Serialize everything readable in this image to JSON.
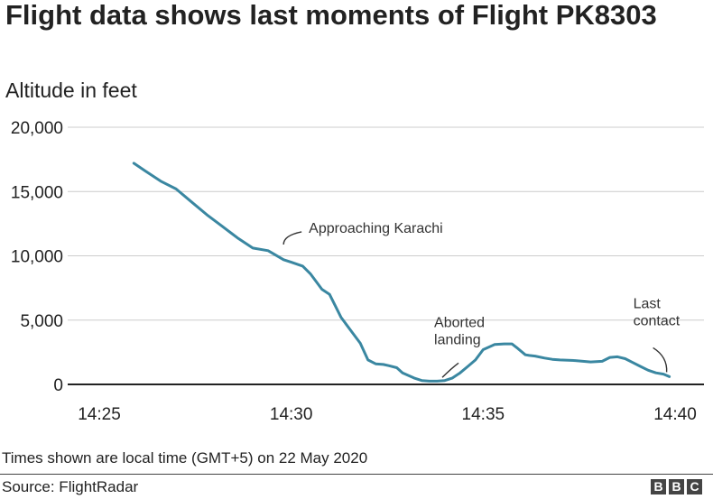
{
  "chart_data": {
    "type": "line",
    "title": "Flight data shows last moments of Flight PK8303",
    "ylabel": "Altitude in feet",
    "xlabel": "",
    "x_domain": [
      25,
      40
    ],
    "ylim": [
      0,
      20000
    ],
    "y_ticks": [
      0,
      5000,
      10000,
      15000,
      20000
    ],
    "y_tick_labels": [
      "0",
      "5,000",
      "10,000",
      "15,000",
      "20,000"
    ],
    "x_ticks": [
      25,
      30,
      35,
      40
    ],
    "x_tick_labels": [
      "14:25",
      "14:30",
      "14:35",
      "14:40"
    ],
    "grid": true,
    "line_color": "#3a87a1",
    "series": [
      {
        "name": "Altitude",
        "x": [
          25.9,
          26.2,
          26.6,
          27.0,
          27.4,
          27.8,
          28.2,
          28.6,
          29.0,
          29.4,
          29.8,
          30.0,
          30.3,
          30.5,
          30.8,
          31.0,
          31.3,
          31.6,
          31.8,
          32.0,
          32.2,
          32.4,
          32.55,
          32.75,
          32.9,
          33.2,
          33.4,
          33.6,
          33.8,
          34.0,
          34.2,
          34.4,
          34.6,
          34.8,
          35.0,
          35.3,
          35.55,
          35.75,
          35.9,
          36.1,
          36.2,
          36.35,
          36.6,
          36.8,
          37.0,
          37.4,
          37.8,
          38.1,
          38.3,
          38.5,
          38.7,
          38.9,
          39.1,
          39.3,
          39.5,
          39.7,
          39.85
        ],
        "y": [
          17200,
          16600,
          15800,
          15200,
          14200,
          13200,
          12300,
          11400,
          10600,
          10400,
          9700,
          9500,
          9200,
          8600,
          7400,
          7000,
          5200,
          4000,
          3200,
          1900,
          1600,
          1550,
          1450,
          1300,
          900,
          500,
          300,
          250,
          250,
          300,
          500,
          900,
          1400,
          1900,
          2700,
          3100,
          3150,
          3150,
          2800,
          2300,
          2250,
          2200,
          2050,
          1950,
          1900,
          1850,
          1750,
          1800,
          2100,
          2150,
          2000,
          1700,
          1400,
          1100,
          900,
          800,
          600
        ]
      }
    ],
    "annotations": [
      {
        "lines": [
          "Approaching Karachi"
        ],
        "x": 29.8,
        "y": 10600
      },
      {
        "lines": [
          "Aborted",
          "landing"
        ],
        "x": 33.7,
        "y": 260
      },
      {
        "lines": [
          "Last",
          "contact"
        ],
        "x": 39.85,
        "y": 600
      }
    ],
    "note": "Times shown are local time (GMT+5) on 22 May 2020",
    "source": "Source: FlightRadar"
  },
  "footer": {
    "logo_letters": [
      "B",
      "B",
      "C"
    ]
  }
}
